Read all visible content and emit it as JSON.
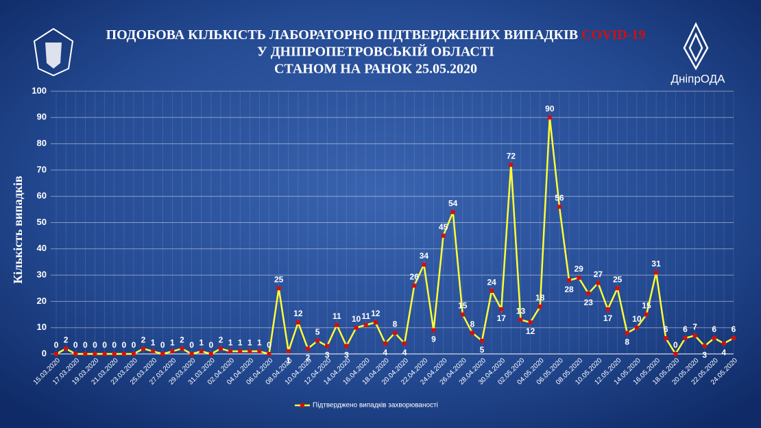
{
  "chart_data": {
    "type": "line",
    "title_lines": [
      "ПОДОБОВА КІЛЬКІСТЬ ЛАБОРАТОРНО ПІДТВЕРДЖЕНИХ ВИПАДКІВ",
      "У ДНІПРОПЕТРОВСЬКІЙ ОБЛАСТІ",
      "СТАНОМ НА РАНОК 25.05.2020"
    ],
    "title_highlight": "COVID-19",
    "logo_text": "ДніпрОДА",
    "y_label": "Кількість випадків",
    "categories": [
      "15.03.2020",
      null,
      "17.03.2020",
      null,
      "19.03.2020",
      null,
      "21.03.2020",
      null,
      "23.03.2020",
      null,
      "25.03.2020",
      null,
      "27.03.2020",
      null,
      "29.03.2020",
      null,
      "31.03.2020",
      null,
      "02.04.2020",
      null,
      "04.04.2020",
      null,
      "06.04.2020",
      null,
      "08.04.2020",
      null,
      "10.04.2020",
      null,
      "12.04.2020",
      null,
      "14.04.2020",
      null,
      "16.04.2020",
      null,
      "18.04.2020",
      null,
      "20.04.2020",
      null,
      "22.04.2020",
      null,
      "24.04.2020",
      null,
      "26.04.2020",
      null,
      "28.04.2020",
      null,
      "30.04.2020",
      null,
      "02.05.2020",
      null,
      "04.05.2020",
      null,
      "06.05.2020",
      null,
      "08.05.2020",
      null,
      "10.05.2020",
      null,
      "12.05.2020",
      null,
      "14.05.2020",
      null,
      "16.05.2020",
      null,
      "18.05.2020",
      null,
      "20.05.2020",
      null,
      "22.05.2020",
      null,
      "24.05.2020"
    ],
    "series": [
      {
        "name": "Підтверджено випадків захворюваності",
        "color": "#ffff33",
        "marker_color": "#d01010",
        "values": [
          0,
          2,
          0,
          0,
          0,
          0,
          0,
          0,
          0,
          2,
          1,
          0,
          1,
          2,
          0,
          1,
          0,
          2,
          1,
          1,
          1,
          1,
          0,
          25,
          1,
          12,
          2,
          5,
          3,
          11,
          3,
          10,
          11,
          12,
          4,
          8,
          4,
          26,
          34,
          9,
          45,
          54,
          15,
          8,
          5,
          24,
          17,
          72,
          13,
          12,
          18,
          90,
          56,
          28,
          29,
          23,
          27,
          17,
          25,
          8,
          10,
          15,
          31,
          6,
          0,
          6,
          7,
          3,
          6,
          4,
          6
        ]
      }
    ],
    "ylim": [
      0,
      100
    ],
    "yticks": [
      0,
      10,
      20,
      30,
      40,
      50,
      60,
      70,
      80,
      90,
      100
    ],
    "grid": true,
    "legend": "bottom"
  }
}
